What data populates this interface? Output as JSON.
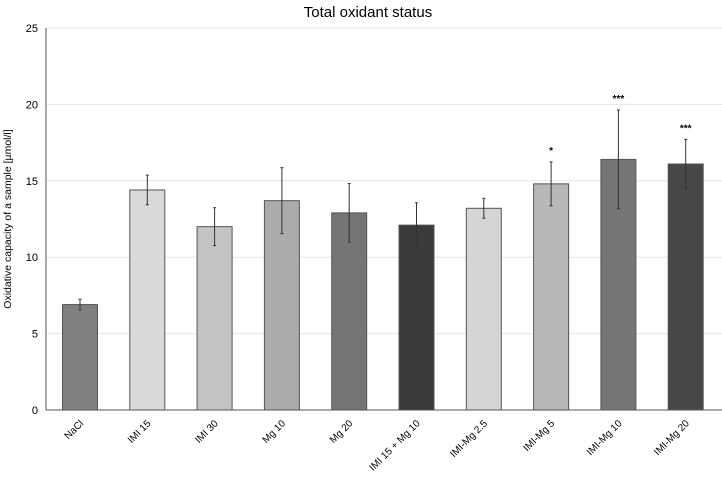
{
  "chart_data": {
    "type": "bar",
    "title": "Total oxidant status",
    "xlabel": "",
    "ylabel": "Oxidative capacity of a sample [µmol/l]",
    "ylim": [
      0,
      25
    ],
    "yticks": [
      0,
      5,
      10,
      15,
      20,
      25
    ],
    "grid": true,
    "categories": [
      "NaCl",
      "IMI 15",
      "IMI 30",
      "Mg 10",
      "Mg 20",
      "IMI 15 + Mg 10",
      "IMI-Mg 2.5",
      "IMI-Mg 5",
      "IMI-Mg 10",
      "IMI-Mg 20"
    ],
    "values": [
      6.9,
      14.4,
      12.0,
      13.7,
      12.9,
      12.1,
      13.2,
      14.8,
      16.4,
      16.1
    ],
    "errors": [
      0.35,
      0.97,
      1.24,
      2.16,
      1.92,
      1.46,
      0.65,
      1.44,
      3.23,
      1.61
    ],
    "significance": [
      "",
      "",
      "",
      "",
      "",
      "",
      "",
      "*",
      "***",
      "***"
    ],
    "colors": [
      "#808080",
      "#d9d9d9",
      "#c4c4c4",
      "#ababab",
      "#757575",
      "#3a3a3a",
      "#d4d4d4",
      "#b8b8b8",
      "#767676",
      "#474747"
    ]
  }
}
